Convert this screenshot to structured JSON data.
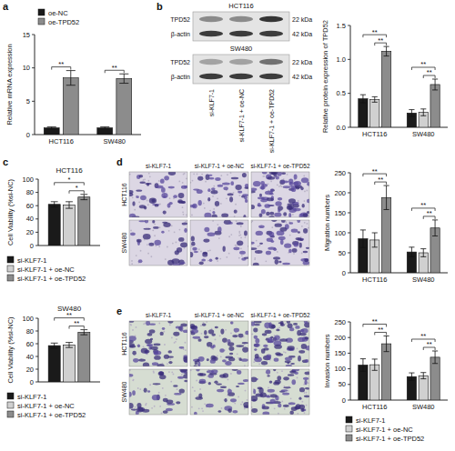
{
  "chart_data": [
    {
      "type": "bar",
      "panel_label": "a",
      "y_label": "Relative mRNA expression",
      "categories": [
        "HCT116",
        "SW480"
      ],
      "series": [
        {
          "name": "oe-NC",
          "color": "#1a1a1a",
          "values": [
            1,
            1
          ],
          "errors": [
            0.15,
            0.15
          ]
        },
        {
          "name": "oe-TPD52",
          "color": "#8c8c8c",
          "values": [
            8.5,
            8.4
          ],
          "errors": [
            1.1,
            0.7
          ]
        }
      ],
      "ylim": [
        0,
        15
      ],
      "yticks": [
        0,
        5,
        10,
        15
      ],
      "legend": "top",
      "annotations": [
        {
          "text": "**",
          "category": 0,
          "from": 0,
          "to": 1
        },
        {
          "text": "**",
          "category": 1,
          "from": 0,
          "to": 1
        }
      ]
    },
    {
      "type": "bar",
      "panel_label": "b",
      "y_label": "Relative protein expression of TPD52",
      "categories": [
        "HCT116",
        "SW480"
      ],
      "series": [
        {
          "name": "si-KLF7-1",
          "color": "#1a1a1a",
          "values": [
            0.42,
            0.21
          ],
          "errors": [
            0.06,
            0.05
          ]
        },
        {
          "name": "si-KLF7-1 + oe-NC",
          "color": "#d0d0d0",
          "values": [
            0.41,
            0.22
          ],
          "errors": [
            0.04,
            0.05
          ]
        },
        {
          "name": "si-KLF7-1 + oe-TPD52",
          "color": "#8c8c8c",
          "values": [
            1.12,
            0.63
          ],
          "errors": [
            0.07,
            0.08
          ]
        }
      ],
      "ylim": [
        0,
        1.5
      ],
      "yticks": [
        {
          "value": 0,
          "label": "0.0"
        },
        0.5,
        {
          "value": 1,
          "label": "1.0"
        },
        1.5
      ],
      "legend": "none",
      "annotations": [
        {
          "text": "**",
          "category": 0,
          "from": 0,
          "to": 2
        },
        {
          "text": "**",
          "category": 0,
          "from": 1,
          "to": 2
        },
        {
          "text": "**",
          "category": 1,
          "from": 0,
          "to": 2
        },
        {
          "text": "**",
          "category": 1,
          "from": 1,
          "to": 2
        }
      ]
    },
    {
      "type": "bar",
      "panel_label": "c",
      "title": "HCT116",
      "y_label": "Cell Viability (%si-NC)",
      "categories": [
        null
      ],
      "series": [
        {
          "name": "si-KLF7-1",
          "color": "#1a1a1a",
          "values": [
            62
          ],
          "errors": [
            4
          ]
        },
        {
          "name": "si-KLF7-1 + oe-NC",
          "color": "#d0d0d0",
          "values": [
            61
          ],
          "errors": [
            5
          ]
        },
        {
          "name": "si-KLF7-1 + oe-TPD52",
          "color": "#8c8c8c",
          "values": [
            73
          ],
          "errors": [
            4
          ]
        }
      ],
      "ylim": [
        0,
        100
      ],
      "yticks": [
        0,
        20,
        40,
        60,
        80,
        100
      ],
      "legend": "bottom",
      "annotations": [
        {
          "text": "*",
          "category": 0,
          "from": 0,
          "to": 2
        },
        {
          "text": "*",
          "category": 0,
          "from": 1,
          "to": 2
        }
      ]
    },
    {
      "type": "bar",
      "title": "SW480",
      "y_label": "Cell Viability (%si-NC)",
      "categories": [
        null
      ],
      "series": [
        {
          "name": "si-KLF7-1",
          "color": "#1a1a1a",
          "values": [
            57
          ],
          "errors": [
            4
          ]
        },
        {
          "name": "si-KLF7-1 + oe-NC",
          "color": "#d0d0d0",
          "values": [
            58
          ],
          "errors": [
            4
          ]
        },
        {
          "name": "si-KLF7-1 + oe-TPD52",
          "color": "#8c8c8c",
          "values": [
            78
          ],
          "errors": [
            4
          ]
        }
      ],
      "ylim": [
        0,
        100
      ],
      "yticks": [
        0,
        20,
        40,
        60,
        80,
        100
      ],
      "legend": "bottom",
      "annotations": [
        {
          "text": "**",
          "category": 0,
          "from": 0,
          "to": 2
        },
        {
          "text": "**",
          "category": 0,
          "from": 1,
          "to": 2
        }
      ]
    },
    {
      "type": "bar",
      "panel_label": "d",
      "y_label": "Migration numbers",
      "categories": [
        "HCT116",
        "SW480"
      ],
      "series": [
        {
          "name": "si-KLF7-1",
          "color": "#1a1a1a",
          "values": [
            85,
            52
          ],
          "errors": [
            22,
            12
          ]
        },
        {
          "name": "si-KLF7-1 + oe-NC",
          "color": "#d0d0d0",
          "values": [
            82,
            50
          ],
          "errors": [
            18,
            10
          ]
        },
        {
          "name": "si-KLF7-1 + oe-TPD52",
          "color": "#8c8c8c",
          "values": [
            188,
            112
          ],
          "errors": [
            30,
            20
          ]
        }
      ],
      "ylim": [
        0,
        250
      ],
      "yticks": [
        0,
        50,
        100,
        150,
        200,
        250
      ],
      "legend": "none",
      "annotations": [
        {
          "text": "**",
          "category": 0,
          "from": 0,
          "to": 2
        },
        {
          "text": "**",
          "category": 0,
          "from": 1,
          "to": 2
        },
        {
          "text": "**",
          "category": 1,
          "from": 0,
          "to": 2
        },
        {
          "text": "**",
          "category": 1,
          "from": 1,
          "to": 2
        }
      ]
    },
    {
      "type": "bar",
      "panel_label": "e",
      "y_label": "Invasion numbers",
      "categories": [
        "HCT116",
        "SW480"
      ],
      "series": [
        {
          "name": "si-KLF7-1",
          "color": "#1a1a1a",
          "values": [
            112,
            75
          ],
          "errors": [
            20,
            12
          ]
        },
        {
          "name": "si-KLF7-1 + oe-NC",
          "color": "#d0d0d0",
          "values": [
            113,
            78
          ],
          "errors": [
            18,
            10
          ]
        },
        {
          "name": "si-KLF7-1 + oe-TPD52",
          "color": "#8c8c8c",
          "values": [
            180,
            137
          ],
          "errors": [
            25,
            20
          ]
        }
      ],
      "ylim": [
        0,
        250
      ],
      "yticks": [
        0,
        50,
        100,
        150,
        200,
        250
      ],
      "legend": "bottom",
      "annotations": [
        {
          "text": "**",
          "category": 0,
          "from": 0,
          "to": 2
        },
        {
          "text": "**",
          "category": 0,
          "from": 1,
          "to": 2
        },
        {
          "text": "**",
          "category": 1,
          "from": 0,
          "to": 2
        },
        {
          "text": "**",
          "category": 1,
          "from": 1,
          "to": 2
        }
      ]
    }
  ],
  "blot": {
    "cell_lines": [
      "HCT116",
      "SW480"
    ],
    "proteins": [
      "TPD52",
      "β-actin"
    ],
    "sizes": [
      "22 kDa",
      "42 kDa"
    ],
    "lanes": [
      "si-KLF7-1",
      "si-KLF7-1 + oe-NC",
      "si-KLF7-1 + oe-TPD52"
    ]
  },
  "micrographs": [
    {
      "columns": [
        "si-KLF7-1",
        "si-KLF7-1 + oe-NC",
        "si-KLF7-1 + oe-TPD52"
      ],
      "rows": [
        "HCT116",
        "SW480"
      ]
    },
    {
      "columns": [
        "si-KLF7-1",
        "si-KLF7-1 + oe-NC",
        "si-KLF7-1 + oe-TPD52"
      ],
      "rows": [
        "HCT116",
        "SW480"
      ]
    }
  ]
}
